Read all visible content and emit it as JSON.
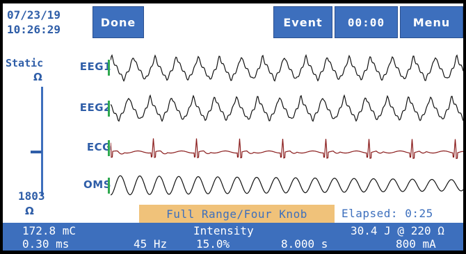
{
  "header": {
    "date": "07/23/19",
    "time": "10:26:29",
    "buttons": {
      "done": "Done",
      "event": "Event",
      "timer": "00:00",
      "menu": "Menu"
    }
  },
  "impedance": {
    "label": "Static",
    "unit": "Ω",
    "value": "1803",
    "unit_bottom": "Ω"
  },
  "channels": [
    {
      "label": "EEG1"
    },
    {
      "label": "EEG2"
    },
    {
      "label": "ECG"
    },
    {
      "label": "OMS"
    }
  ],
  "mode_banner": "Full Range/Four Knob",
  "elapsed": "Elapsed: 0:25",
  "status": {
    "charge": "172.8 mC",
    "intensity_label": "Intensity",
    "energy": "30.4 J @ 220 Ω",
    "pulse_width": "0.30 ms",
    "frequency": "45 Hz",
    "intensity_pct": "15.0%",
    "duration": "8.000 s",
    "current": "800 mA"
  },
  "colors": {
    "accent": "#3d6fbd",
    "label_blue": "#2f5ea8",
    "channel_marker": "#2fa84f",
    "banner": "#f0c27a"
  }
}
